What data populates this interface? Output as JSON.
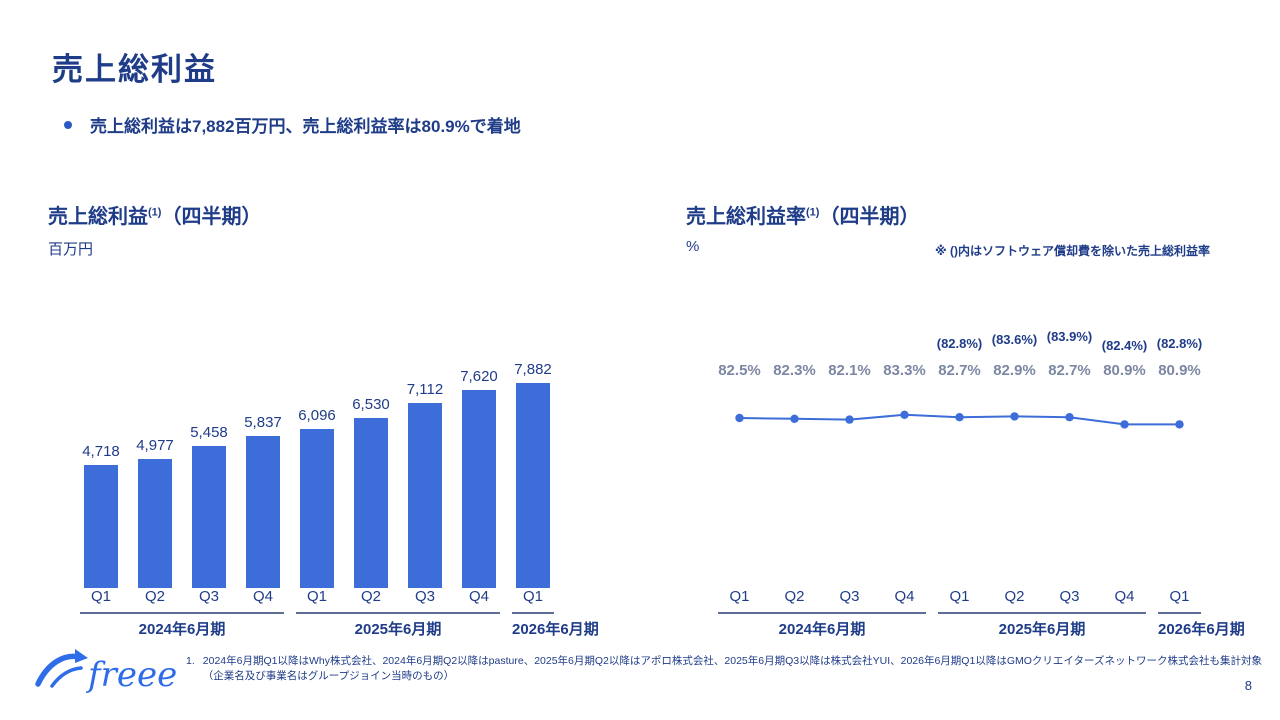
{
  "slide": {
    "title": "売上総利益",
    "bullet": "売上総利益は7,882百万円、売上総利益率は80.9%で着地",
    "page_number": "8",
    "logo_text": "freee"
  },
  "footnote": {
    "marker": "1.",
    "line1": "2024年6月期Q1以降はWhy株式会社、2024年6月期Q2以降はpasture、2025年6月期Q2以降はアポロ株式会社、2025年6月期Q3以降は株式会社YUI、2026年6月期Q1以降はGMOクリエイターズネットワーク株式会社も集計対象",
    "line2": "（企業名及び事業名はグループジョイン当時のもの）"
  },
  "colors": {
    "navy_text": "#1f3c88",
    "bar_blue": "#3d6dd8",
    "line_blue": "#3d6dd8",
    "gray_label": "#7c87a3",
    "logo_blue": "#2f6ce8"
  },
  "chart_data": [
    {
      "type": "bar",
      "title_main": "売上総利益",
      "title_sup": "(1)",
      "title_suffix": "（四半期）",
      "unit": "百万円",
      "categories": [
        "Q1",
        "Q2",
        "Q3",
        "Q4",
        "Q1",
        "Q2",
        "Q3",
        "Q4",
        "Q1"
      ],
      "values": [
        4718,
        4977,
        5458,
        5837,
        6096,
        6530,
        7112,
        7620,
        7882
      ],
      "value_labels": [
        "4,718",
        "4,977",
        "5,458",
        "5,837",
        "6,096",
        "6,530",
        "7,112",
        "7,620",
        "7,882"
      ],
      "groups": [
        {
          "label": "2024年6月期",
          "span": 4
        },
        {
          "label": "2025年6月期",
          "span": 4
        },
        {
          "label": "2026年6月期",
          "span": 1
        }
      ],
      "ylim": [
        0,
        7882
      ],
      "bar_color": "#3d6dd8",
      "legend": "none",
      "grid": "off"
    },
    {
      "type": "line",
      "title_main": "売上総利益率",
      "title_sup": "(1)",
      "title_suffix": "（四半期）",
      "unit": "%",
      "note": "※ ()内はソフトウェア償却費を除いた売上総利益率",
      "categories": [
        "Q1",
        "Q2",
        "Q3",
        "Q4",
        "Q1",
        "Q2",
        "Q3",
        "Q4",
        "Q1"
      ],
      "values": [
        82.5,
        82.3,
        82.1,
        83.3,
        82.7,
        82.9,
        82.7,
        80.9,
        80.9
      ],
      "value_labels": [
        "82.5%",
        "82.3%",
        "82.1%",
        "83.3%",
        "82.7%",
        "82.9%",
        "82.7%",
        "80.9%",
        "80.9%"
      ],
      "paren_labels": [
        "",
        "",
        "",
        "",
        "(82.8%)",
        "(83.6%)",
        "(83.9%)",
        "(82.4%)",
        "(82.8%)"
      ],
      "groups": [
        {
          "label": "2024年6月期",
          "span": 4
        },
        {
          "label": "2025年6月期",
          "span": 4
        },
        {
          "label": "2026年6月期",
          "span": 1
        }
      ],
      "line_color": "#3d6dd8",
      "legend": "none",
      "grid": "off"
    }
  ]
}
